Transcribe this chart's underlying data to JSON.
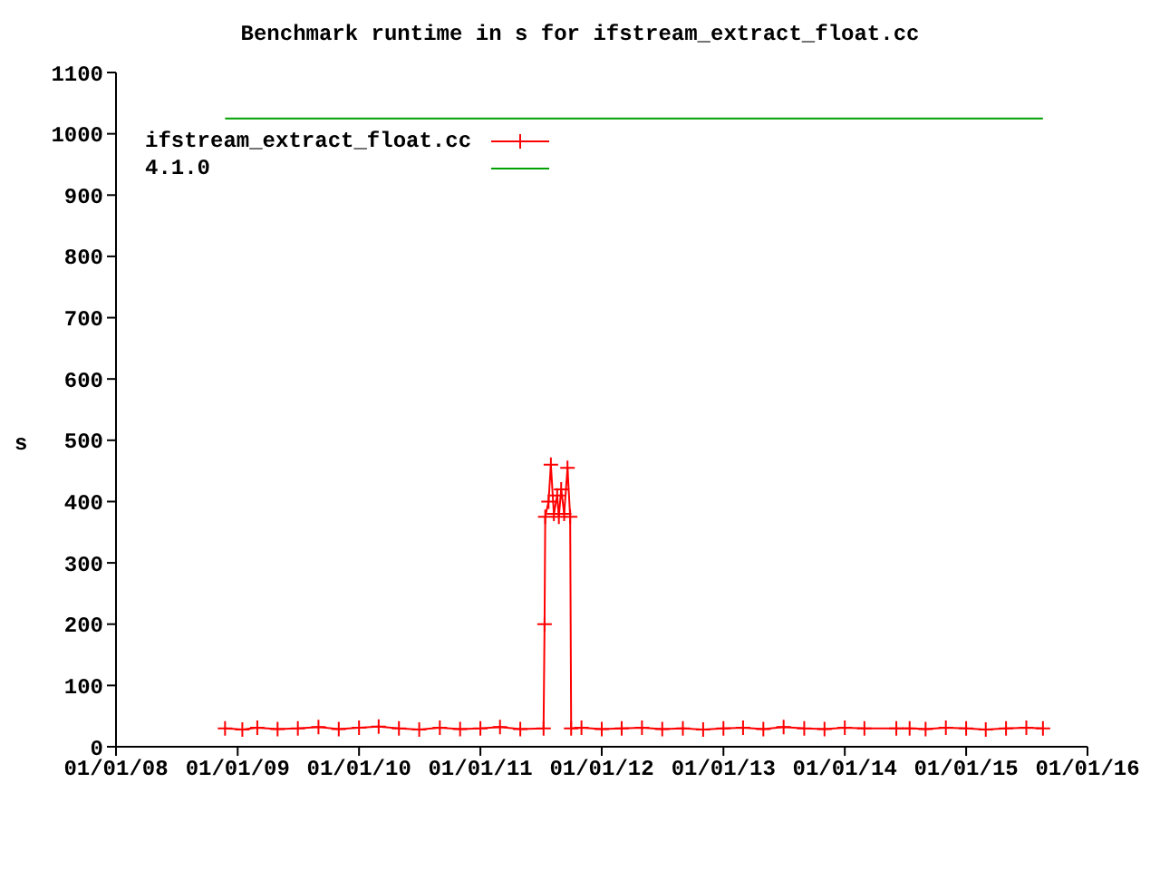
{
  "chart_data": {
    "type": "line",
    "title": "Benchmark runtime in s for ifstream_extract_float.cc",
    "ylabel": "s",
    "xlim": [
      "2008-01-01",
      "2016-01-01"
    ],
    "xticks": [
      {
        "value": "2008-01-01",
        "label": "01/01/08"
      },
      {
        "value": "2009-01-01",
        "label": "01/01/09"
      },
      {
        "value": "2010-01-01",
        "label": "01/01/10"
      },
      {
        "value": "2011-01-01",
        "label": "01/01/11"
      },
      {
        "value": "2012-01-01",
        "label": "01/01/12"
      },
      {
        "value": "2013-01-01",
        "label": "01/01/13"
      },
      {
        "value": "2014-01-01",
        "label": "01/01/14"
      },
      {
        "value": "2015-01-01",
        "label": "01/01/15"
      },
      {
        "value": "2016-01-01",
        "label": "01/01/16"
      }
    ],
    "ylim": [
      0,
      1100
    ],
    "yticks": [
      0,
      100,
      200,
      300,
      400,
      500,
      600,
      700,
      800,
      900,
      1000,
      1100
    ],
    "legend": "top left",
    "series": [
      {
        "name": "ifstream_extract_float.cc",
        "color": "#ff0000",
        "marker": "cross",
        "x": [
          "2008-11-24",
          "2009-01-15",
          "2009-03-01",
          "2009-05-01",
          "2009-07-01",
          "2009-09-01",
          "2009-11-01",
          "2010-01-01",
          "2010-03-01",
          "2010-05-01",
          "2010-07-01",
          "2010-09-01",
          "2010-11-01",
          "2011-01-01",
          "2011-03-01",
          "2011-05-01",
          "2011-07-10",
          "2011-07-13",
          "2011-07-15",
          "2011-07-25",
          "2011-08-01",
          "2011-08-10",
          "2011-08-20",
          "2011-08-25",
          "2011-09-01",
          "2011-09-10",
          "2011-09-20",
          "2011-09-28",
          "2011-10-01",
          "2011-11-01",
          "2012-01-01",
          "2012-03-01",
          "2012-05-01",
          "2012-07-01",
          "2012-09-01",
          "2012-11-01",
          "2013-01-01",
          "2013-03-01",
          "2013-05-01",
          "2013-07-01",
          "2013-09-01",
          "2013-11-01",
          "2014-01-01",
          "2014-03-01",
          "2014-06-05",
          "2014-07-15",
          "2014-09-01",
          "2014-11-01",
          "2015-01-01",
          "2015-03-01",
          "2015-05-01",
          "2015-07-01",
          "2015-08-20"
        ],
        "values": [
          30,
          28,
          31,
          29,
          30,
          32,
          29,
          31,
          33,
          30,
          28,
          31,
          29,
          30,
          32,
          29,
          30,
          200,
          375,
          400,
          460,
          380,
          410,
          375,
          420,
          380,
          455,
          375,
          30,
          31,
          29,
          30,
          31,
          29,
          30,
          28,
          30,
          31,
          29,
          32,
          30,
          29,
          31,
          30,
          30,
          30,
          29,
          31,
          30,
          28,
          30,
          31,
          30
        ]
      },
      {
        "name": "4.1.0",
        "color": "#00a000",
        "marker": "none",
        "x": [
          "2008-11-24",
          "2015-08-20"
        ],
        "values": [
          1025,
          1025
        ]
      }
    ]
  }
}
